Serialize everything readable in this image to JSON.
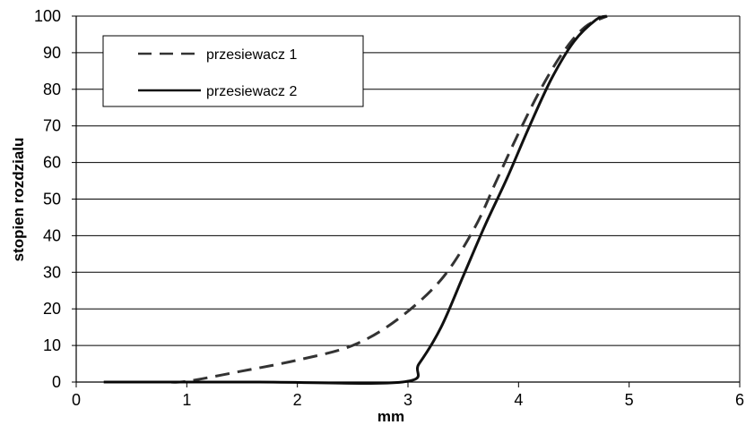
{
  "chart_data": {
    "type": "line",
    "xlabel": "mm",
    "ylabel": "stopien rozdzialu",
    "xlim": [
      0,
      6
    ],
    "ylim": [
      0,
      100
    ],
    "x_ticks": [
      "0",
      "1",
      "2",
      "3",
      "4",
      "5",
      "6"
    ],
    "y_ticks": [
      "0",
      "10",
      "20",
      "30",
      "40",
      "50",
      "60",
      "70",
      "80",
      "90",
      "100"
    ],
    "grid": "horizontal",
    "legend_position": "top-left",
    "series": [
      {
        "name": "przesiewacz 1",
        "style": "dashed",
        "color": "#333333",
        "points": [
          [
            0.25,
            0
          ],
          [
            0.8,
            0
          ],
          [
            1.0,
            0.2
          ],
          [
            1.5,
            3
          ],
          [
            2.0,
            6
          ],
          [
            2.5,
            10
          ],
          [
            2.9,
            17
          ],
          [
            3.3,
            28
          ],
          [
            3.6,
            42
          ],
          [
            3.8,
            55
          ],
          [
            4.0,
            68
          ],
          [
            4.2,
            80
          ],
          [
            4.4,
            90
          ],
          [
            4.6,
            97
          ],
          [
            4.8,
            100
          ]
        ]
      },
      {
        "name": "przesiewacz 2",
        "style": "solid",
        "color": "#111111",
        "points": [
          [
            0.25,
            0
          ],
          [
            1.65,
            0
          ],
          [
            2.95,
            0
          ],
          [
            3.1,
            5
          ],
          [
            3.3,
            15
          ],
          [
            3.5,
            29
          ],
          [
            3.7,
            43
          ],
          [
            3.9,
            56
          ],
          [
            4.1,
            70
          ],
          [
            4.3,
            83
          ],
          [
            4.5,
            93
          ],
          [
            4.7,
            99
          ],
          [
            4.8,
            100
          ]
        ]
      }
    ]
  }
}
